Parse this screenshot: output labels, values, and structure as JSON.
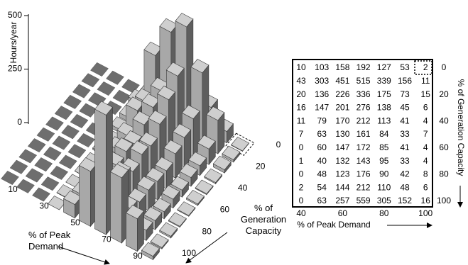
{
  "chart_data": {
    "type": "bar3d",
    "z_label": "Hours/year",
    "zlim": [
      0,
      500
    ],
    "zticks": [
      0,
      250,
      500
    ],
    "x_label": "% of Peak Demand",
    "xticks": [
      10,
      30,
      50,
      70,
      90
    ],
    "x": [
      40,
      50,
      60,
      70,
      80,
      90,
      100
    ],
    "y_label": "% of Generation Capacity",
    "yticks": [
      0,
      20,
      40,
      60,
      80,
      100
    ],
    "y": [
      0,
      10,
      20,
      30,
      40,
      50,
      60,
      70,
      80,
      90,
      100
    ],
    "values": [
      [
        10,
        103,
        158,
        192,
        127,
        53,
        2
      ],
      [
        43,
        303,
        451,
        515,
        339,
        156,
        11
      ],
      [
        20,
        136,
        226,
        336,
        175,
        73,
        15
      ],
      [
        16,
        147,
        201,
        276,
        138,
        45,
        6
      ],
      [
        11,
        79,
        170,
        212,
        113,
        41,
        4
      ],
      [
        7,
        63,
        130,
        161,
        84,
        33,
        7
      ],
      [
        0,
        60,
        147,
        172,
        85,
        41,
        4
      ],
      [
        1,
        40,
        132,
        143,
        95,
        33,
        4
      ],
      [
        0,
        48,
        123,
        176,
        90,
        42,
        8
      ],
      [
        2,
        54,
        144,
        212,
        110,
        48,
        6
      ],
      [
        0,
        63,
        257,
        559,
        305,
        152,
        16
      ]
    ],
    "colors": {
      "top": "#cfcfcf",
      "front": "#a8a8a8",
      "side": "#5e5e5e"
    },
    "table": {
      "x_label": "% of Peak Demand",
      "y_label": "% of Generation Capacity",
      "xticks": [
        40,
        60,
        80,
        100
      ],
      "yticks": [
        0,
        20,
        40,
        60,
        80,
        100
      ]
    }
  }
}
